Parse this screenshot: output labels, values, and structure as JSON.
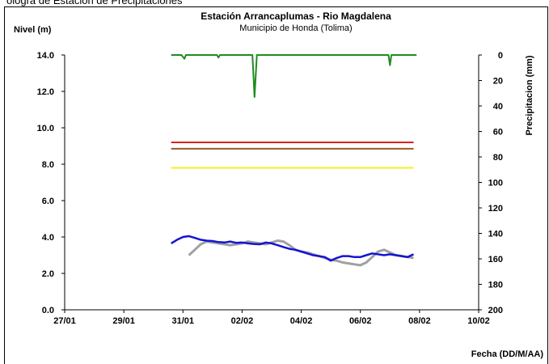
{
  "clipped_header_text": "ologra de Estación de Precipitaciones",
  "chart_data": {
    "type": "line",
    "title": "Estación Arrancaplumas - Rio Magdalena",
    "subtitle": "Municipio de Honda (Tolima)",
    "ylabel": "Nivel (m)",
    "y2label": "Precipitacion (mm)",
    "xlabel": "Fecha (DD/M/AA)",
    "x_ticks": [
      "27/01",
      "29/01",
      "31/01",
      "02/02",
      "04/02",
      "06/02",
      "08/02",
      "10/02"
    ],
    "y_ticks": [
      "0.0",
      "2.0",
      "4.0",
      "6.0",
      "8.0",
      "10.0",
      "12.0",
      "14.0"
    ],
    "y2_ticks": [
      "0",
      "20",
      "40",
      "60",
      "80",
      "100",
      "120",
      "140",
      "160",
      "180",
      "200"
    ],
    "xlim_days": [
      0,
      14
    ],
    "ylim": [
      0,
      14
    ],
    "y2lim": [
      0,
      200
    ],
    "y2_inverted": true,
    "grid": false,
    "colors": {
      "observed": "#1414d4",
      "forecast": "#a0a0a0",
      "precipitation": "#1e8c1e",
      "threshold_red": "#e02020",
      "threshold_orange": "#9a5a2a",
      "threshold_yellow": "#f0f020"
    },
    "thresholds": [
      {
        "value": 9.2,
        "color": "#e02020",
        "x_start": 3.6,
        "x_end": 11.8
      },
      {
        "value": 8.85,
        "color": "#9a5a2a",
        "x_start": 3.6,
        "x_end": 11.8
      },
      {
        "value": 7.8,
        "color": "#f0f020",
        "x_start": 3.6,
        "x_end": 11.8
      }
    ],
    "series": [
      {
        "key": "observed",
        "x": [
          3.6,
          3.8,
          4.0,
          4.2,
          4.4,
          4.6,
          4.8,
          5.0,
          5.2,
          5.4,
          5.6,
          5.8,
          6.0,
          6.2,
          6.4,
          6.6,
          6.8,
          7.0,
          7.2,
          7.4,
          7.6,
          7.8,
          8.0,
          8.2,
          8.4,
          8.6,
          8.8,
          9.0,
          9.2,
          9.4,
          9.6,
          9.8,
          10.0,
          10.2,
          10.4,
          10.6,
          10.8,
          11.0,
          11.2,
          11.4,
          11.6,
          11.8
        ],
        "y": [
          3.65,
          3.85,
          4.0,
          4.05,
          3.95,
          3.85,
          3.8,
          3.78,
          3.72,
          3.7,
          3.75,
          3.68,
          3.7,
          3.65,
          3.62,
          3.6,
          3.7,
          3.65,
          3.55,
          3.45,
          3.35,
          3.3,
          3.2,
          3.1,
          3.0,
          2.95,
          2.9,
          2.7,
          2.85,
          2.95,
          2.95,
          2.9,
          2.9,
          3.0,
          3.1,
          3.05,
          3.0,
          3.05,
          3.0,
          2.95,
          2.9,
          3.05
        ]
      },
      {
        "key": "forecast",
        "x": [
          4.2,
          4.4,
          4.6,
          4.8,
          5.0,
          5.2,
          5.4,
          5.6,
          5.8,
          6.0,
          6.2,
          6.4,
          6.6,
          6.8,
          7.0,
          7.2,
          7.4,
          7.6,
          7.8,
          8.0,
          8.2,
          8.4,
          8.6,
          8.8,
          9.0,
          9.2,
          9.4,
          9.6,
          9.8,
          10.0,
          10.2,
          10.4,
          10.6,
          10.8,
          11.0,
          11.2,
          11.4,
          11.6,
          11.8
        ],
        "y": [
          3.0,
          3.3,
          3.6,
          3.75,
          3.7,
          3.65,
          3.6,
          3.55,
          3.6,
          3.65,
          3.75,
          3.7,
          3.65,
          3.6,
          3.7,
          3.8,
          3.75,
          3.55,
          3.3,
          3.2,
          3.15,
          3.05,
          2.95,
          2.85,
          2.75,
          2.7,
          2.6,
          2.55,
          2.5,
          2.45,
          2.6,
          2.9,
          3.2,
          3.3,
          3.15,
          3.0,
          2.95,
          2.9,
          2.85
        ]
      },
      {
        "key": "precipitation",
        "axis": "y2",
        "x": [
          3.6,
          3.95,
          4.05,
          4.1,
          5.15,
          5.2,
          5.25,
          6.35,
          6.42,
          6.5,
          10.95,
          11.0,
          11.05,
          11.9
        ],
        "y": [
          0,
          0,
          3,
          0,
          0,
          2,
          0,
          0,
          33,
          0,
          0,
          8,
          0,
          0
        ]
      }
    ]
  }
}
